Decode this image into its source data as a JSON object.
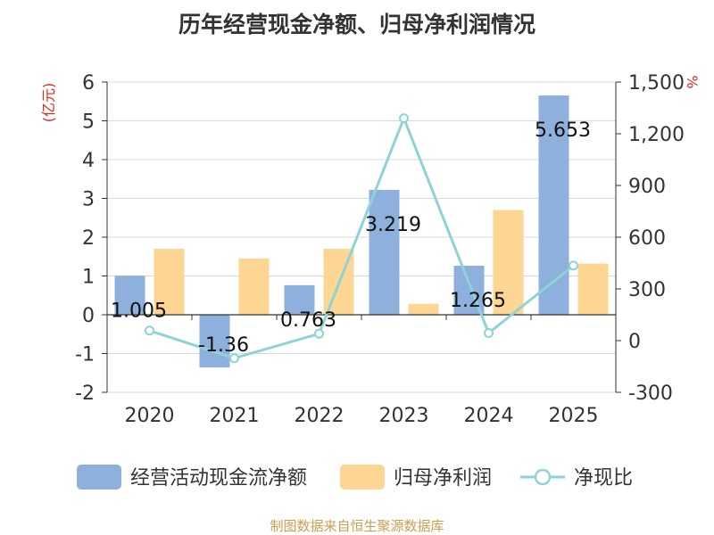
{
  "chart_data": {
    "type": "bar",
    "title": "历年经营现金净额、归母净利润情况",
    "y_left_unit": "(亿元)",
    "y_right_unit": "%",
    "categories": [
      "2020",
      "2021",
      "2022",
      "2023",
      "2024",
      "2025"
    ],
    "y_left_ticks": [
      "6",
      "5",
      "4",
      "3",
      "2",
      "1",
      "0",
      "-1",
      "-2"
    ],
    "y_right_ticks": [
      "1,500",
      "1,200",
      "900",
      "600",
      "300",
      "0",
      "-300"
    ],
    "ylim_left": [
      -2,
      6
    ],
    "ylim_right": [
      -300,
      1500
    ],
    "grid": true,
    "legend_position": "bottom",
    "series": [
      {
        "name": "经营活动现金流净额",
        "type": "bar",
        "axis": "left",
        "color": "#8eb0dc",
        "values": [
          1.005,
          -1.36,
          0.763,
          3.219,
          1.265,
          5.653
        ],
        "labels": [
          "1.005",
          "-1.36",
          "0.763",
          "3.219",
          "1.265",
          "5.653"
        ]
      },
      {
        "name": "归母净利润",
        "type": "bar",
        "axis": "left",
        "color": "#fdd694",
        "values": [
          1.7,
          1.45,
          1.7,
          0.28,
          2.7,
          1.32
        ]
      },
      {
        "name": "净现比",
        "type": "line",
        "axis": "right",
        "color": "#8dd3d8",
        "values": [
          58,
          -102,
          40,
          1290,
          44,
          435
        ]
      }
    ]
  },
  "source_note": "制图数据来自恒生聚源数据库"
}
